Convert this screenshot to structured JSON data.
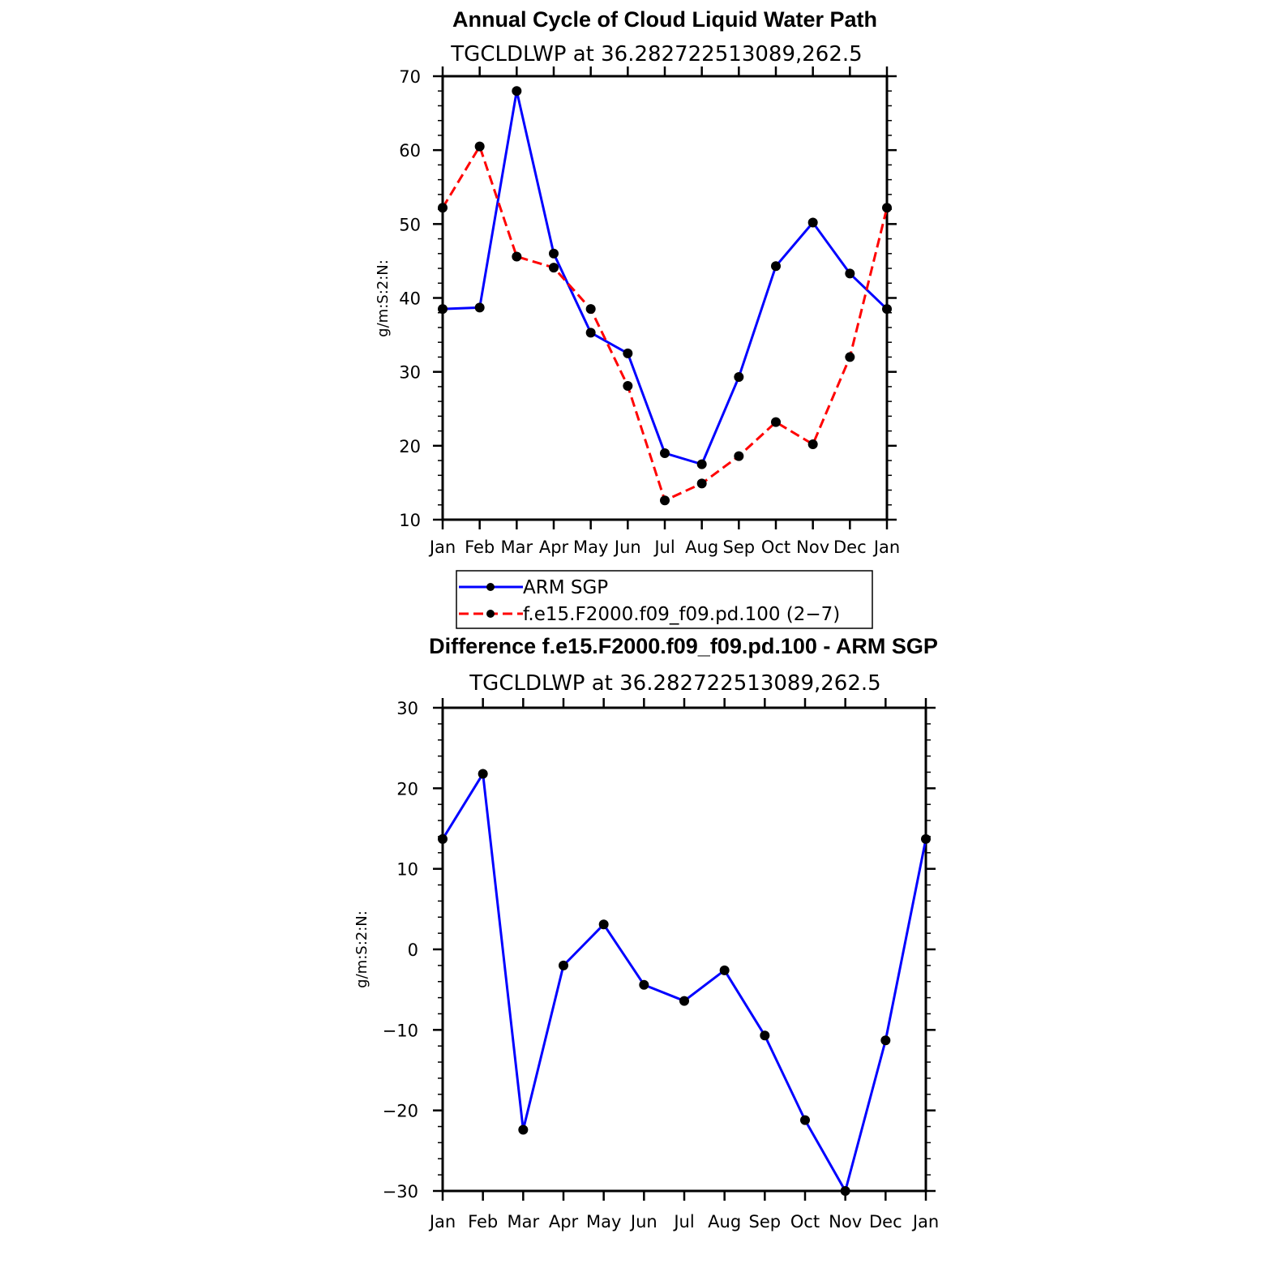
{
  "chart_data": [
    {
      "type": "line",
      "title": "Annual Cycle of Cloud Liquid Water Path",
      "subtitle": "TGCLDLWP at 36.282722513089,262.5",
      "ylabel": "g/m:S:2:N:",
      "xlabel": "",
      "categories": [
        "Jan",
        "Feb",
        "Mar",
        "Apr",
        "May",
        "Jun",
        "Jul",
        "Aug",
        "Sep",
        "Oct",
        "Nov",
        "Dec",
        "Jan"
      ],
      "ylim": [
        10,
        70
      ],
      "yticks": [
        "10",
        "20",
        "30",
        "40",
        "50",
        "60",
        "70"
      ],
      "series": [
        {
          "name": "ARM SGP",
          "color": "#0000ff",
          "dash": "solid",
          "values": [
            38.5,
            38.7,
            68.0,
            46.0,
            35.3,
            32.5,
            19.0,
            17.5,
            29.3,
            44.3,
            50.2,
            43.3,
            38.5
          ]
        },
        {
          "name": "f.e15.F2000.f09_f09.pd.100 (2−7)",
          "color": "#ff0000",
          "dash": "dashed",
          "values": [
            52.2,
            60.5,
            45.6,
            44.1,
            38.5,
            28.1,
            12.6,
            14.9,
            18.6,
            23.2,
            20.2,
            32.0,
            52.2
          ]
        }
      ],
      "legend": [
        "ARM SGP",
        "f.e15.F2000.f09_f09.pd.100 (2−7)"
      ],
      "legend_position": "below"
    },
    {
      "type": "line",
      "title": "Difference f.e15.F2000.f09_f09.pd.100 - ARM SGP",
      "subtitle": "TGCLDLWP at 36.282722513089,262.5",
      "ylabel": "g/m:S:2:N:",
      "xlabel": "",
      "categories": [
        "Jan",
        "Feb",
        "Mar",
        "Apr",
        "May",
        "Jun",
        "Jul",
        "Aug",
        "Sep",
        "Oct",
        "Nov",
        "Dec",
        "Jan"
      ],
      "ylim": [
        -30,
        30
      ],
      "yticks": [
        "−30",
        "−20",
        "−10",
        "0",
        "10",
        "20",
        "30"
      ],
      "series": [
        {
          "name": "Difference",
          "color": "#0000ff",
          "dash": "solid",
          "values": [
            13.7,
            21.8,
            -22.4,
            -2.0,
            3.1,
            -4.4,
            -6.4,
            -2.6,
            -10.7,
            -21.2,
            -30.0,
            -11.3,
            13.7
          ]
        }
      ]
    }
  ]
}
